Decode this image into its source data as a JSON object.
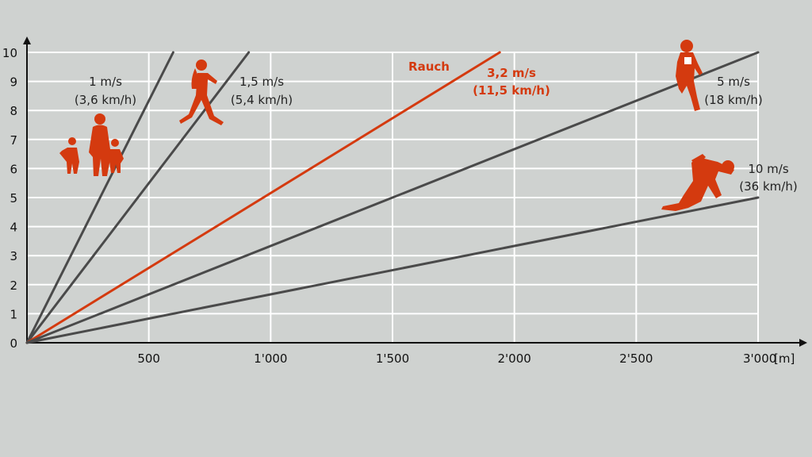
{
  "chart_data": {
    "type": "line",
    "x_unit": "[m]",
    "xlim": [
      0,
      3000
    ],
    "ylim": [
      0,
      10
    ],
    "x_ticks": [
      {
        "value": 500,
        "label": "500"
      },
      {
        "value": 1000,
        "label": "1'000"
      },
      {
        "value": 1500,
        "label": "1'500"
      },
      {
        "value": 2000,
        "label": "2'000"
      },
      {
        "value": 2500,
        "label": "2'500"
      },
      {
        "value": 3000,
        "label": "3'000"
      }
    ],
    "y_ticks": [
      "0",
      "1",
      "2",
      "3",
      "4",
      "5",
      "6",
      "7",
      "8",
      "9",
      "10"
    ],
    "grid": true,
    "series": [
      {
        "key": "s1",
        "label": [
          "1 m/s",
          "(3,6 km/h)"
        ],
        "color": "#4a4a4a",
        "x": [
          0,
          600
        ],
        "y": [
          0,
          10
        ]
      },
      {
        "key": "s15",
        "label": [
          "1,5 m/s",
          "(5,4 km/h)"
        ],
        "color": "#4a4a4a",
        "x": [
          0,
          910
        ],
        "y": [
          0,
          10
        ]
      },
      {
        "key": "rauch",
        "name": "Rauch",
        "label": [
          "3,2 m/s",
          "(11,5 km/h)"
        ],
        "color": "#d43a0f",
        "x": [
          0,
          1940
        ],
        "y": [
          0,
          10
        ]
      },
      {
        "key": "s5",
        "label": [
          "5 m/s",
          "(18 km/h)"
        ],
        "color": "#4a4a4a",
        "x": [
          0,
          3000
        ],
        "y": [
          0,
          10
        ]
      },
      {
        "key": "s10",
        "label": [
          "10 m/s",
          "(36 km/h)"
        ],
        "color": "#4a4a4a",
        "x": [
          0,
          3000
        ],
        "y": [
          0,
          5
        ]
      }
    ]
  },
  "icons": {
    "color": "#d43a0f",
    "family_walking": "family-walking-icon",
    "woman_walking": "woman-walking-icon",
    "runner": "runner-icon",
    "sprinter": "sprinter-icon"
  }
}
